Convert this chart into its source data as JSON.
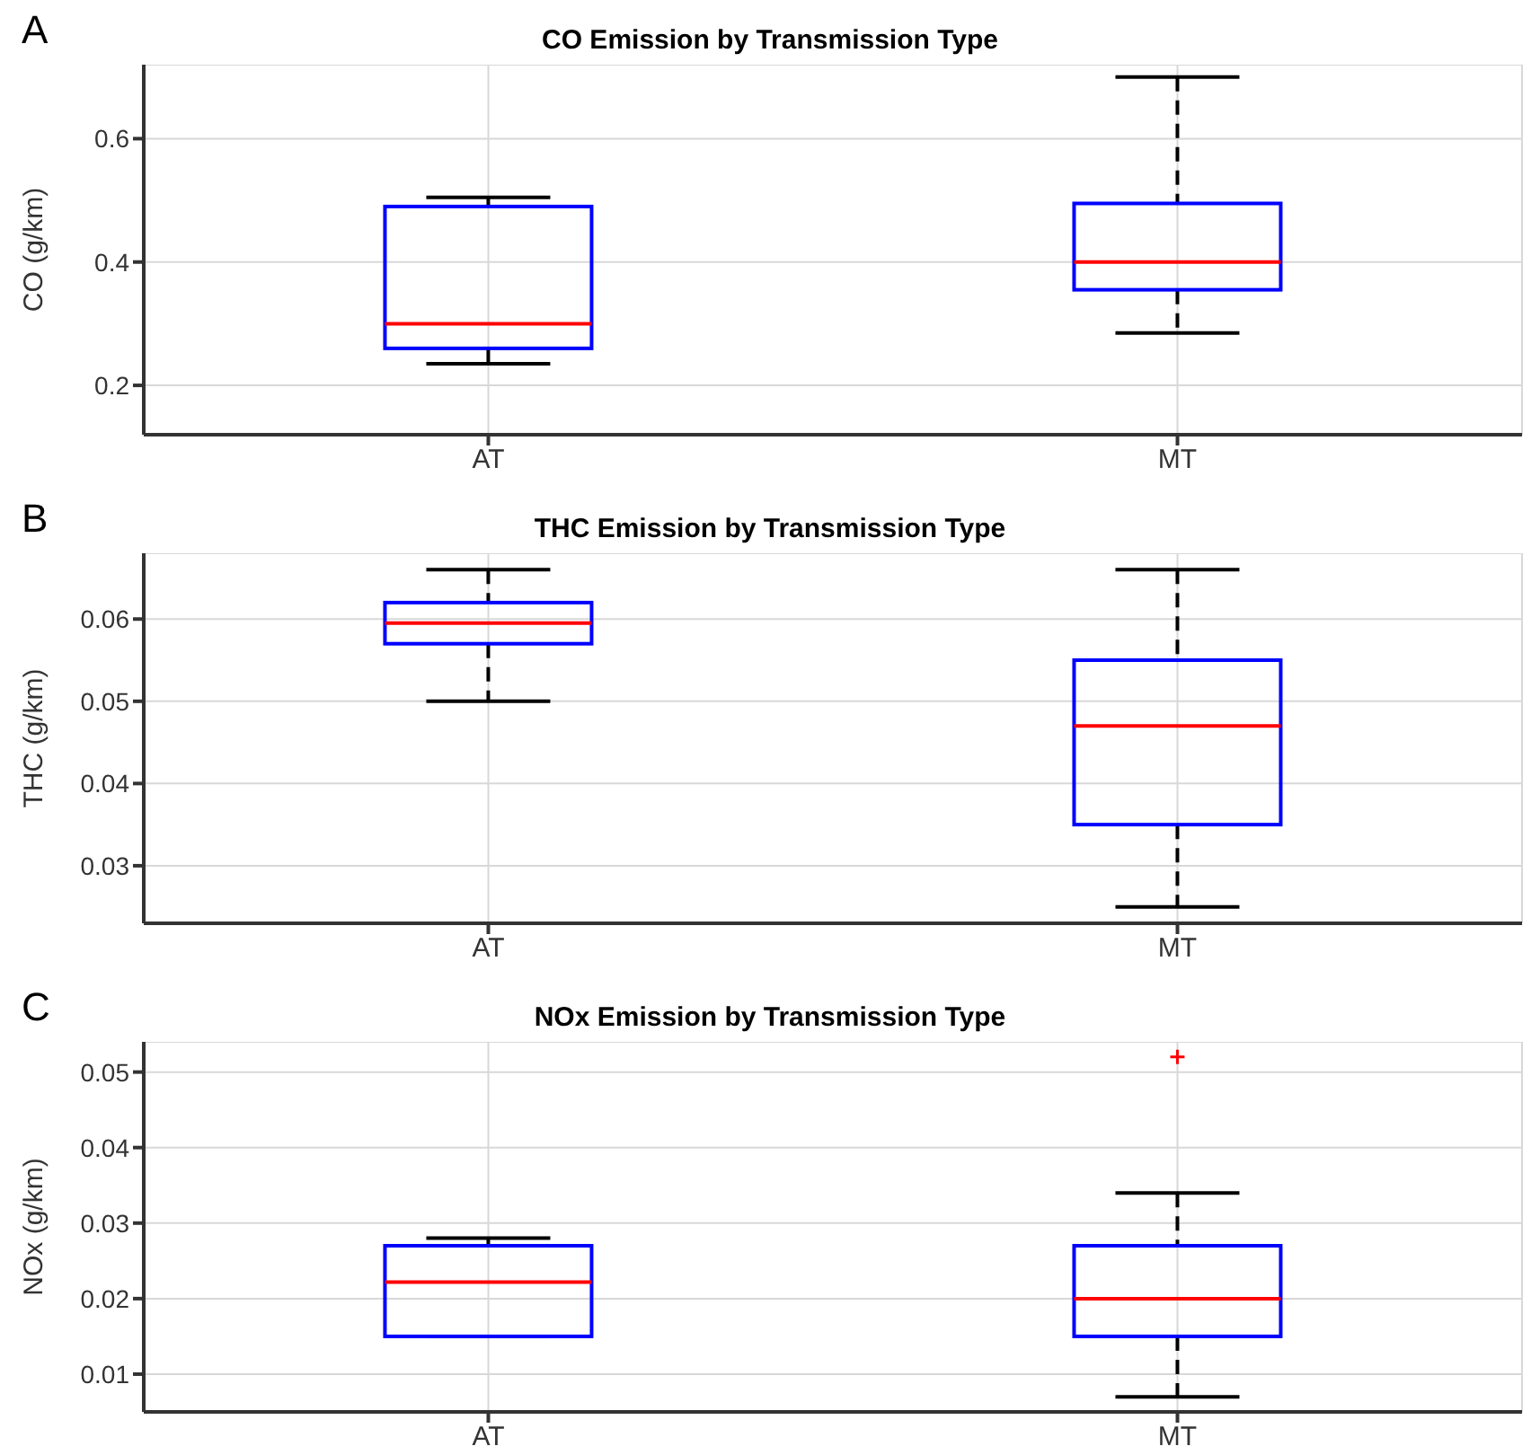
{
  "chart_data": [
    {
      "type": "box",
      "title": "CO Emission by Transmission Type",
      "ylabel": "CO (g/km)",
      "annotations": [
        "A"
      ],
      "categories": [
        "AT",
        "MT"
      ],
      "ylim": [
        0.12,
        0.72
      ],
      "yticks": [
        0.2,
        0.4,
        0.6
      ],
      "grid": true,
      "boxes": [
        {
          "low": 0.235,
          "q1": 0.26,
          "median": 0.3,
          "q3": 0.49,
          "high": 0.505
        },
        {
          "low": 0.285,
          "q1": 0.355,
          "median": 0.4,
          "q3": 0.495,
          "high": 0.7
        }
      ]
    },
    {
      "type": "box",
      "title": "THC Emission by Transmission Type",
      "ylabel": "THC (g/km)",
      "annotations": [
        "B"
      ],
      "categories": [
        "AT",
        "MT"
      ],
      "ylim": [
        0.023,
        0.068
      ],
      "yticks": [
        0.03,
        0.04,
        0.05,
        0.06
      ],
      "grid": true,
      "boxes": [
        {
          "low": 0.05,
          "q1": 0.057,
          "median": 0.0595,
          "q3": 0.062,
          "high": 0.066
        },
        {
          "low": 0.025,
          "q1": 0.035,
          "median": 0.047,
          "q3": 0.055,
          "high": 0.066
        }
      ]
    },
    {
      "type": "box",
      "title": "NOx Emission by Transmission Type",
      "ylabel": "NOx (g/km)",
      "annotations": [
        "C"
      ],
      "categories": [
        "AT",
        "MT"
      ],
      "ylim": [
        0.005,
        0.054
      ],
      "yticks": [
        0.01,
        0.02,
        0.03,
        0.04,
        0.05
      ],
      "grid": true,
      "boxes": [
        {
          "low": 0.015,
          "q1": 0.015,
          "median": 0.0222,
          "q3": 0.027,
          "high": 0.028
        },
        {
          "low": 0.007,
          "q1": 0.015,
          "median": 0.02,
          "q3": 0.027,
          "high": 0.034,
          "outliers": [
            0.052
          ]
        }
      ]
    }
  ]
}
